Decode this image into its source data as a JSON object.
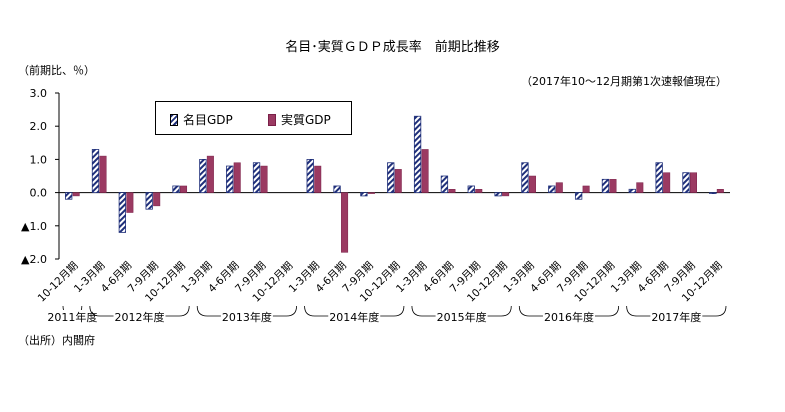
{
  "title": "名目･実質ＧＤＰ成長率　前期比推移",
  "unit_label": "（前期比、％）",
  "note": "（2017年10～12月期第1次速報値現在）",
  "source": "（出所）内閣府",
  "colors": {
    "nominal": "#1f2f7a",
    "real": "#9b3a62",
    "axis": "#000000"
  },
  "chart_data": {
    "type": "bar",
    "categories": [
      "10-12月期",
      "1-3月期",
      "4-6月期",
      "7-9月期",
      "10-12月期",
      "1-3月期",
      "4-6月期",
      "7-9月期",
      "10-12月期",
      "1-3月期",
      "4-6月期",
      "7-9月期",
      "10-12月期",
      "1-3月期",
      "4-6月期",
      "7-9月期",
      "10-12月期",
      "1-3月期",
      "4-6月期",
      "7-9月期",
      "10-12月期",
      "1-3月期",
      "4-6月期",
      "7-9月期",
      "10-12月期"
    ],
    "series": [
      {
        "name": "名目GDP",
        "values": [
          -0.2,
          1.3,
          -1.2,
          -0.5,
          0.2,
          1.0,
          0.8,
          0.9,
          null,
          1.0,
          0.2,
          -0.1,
          0.9,
          2.3,
          0.5,
          0.2,
          -0.1,
          0.9,
          0.2,
          -0.2,
          0.4,
          0.1,
          0.9,
          0.6,
          0.0
        ]
      },
      {
        "name": "実質GDP",
        "values": [
          -0.1,
          1.1,
          -0.6,
          -0.4,
          0.2,
          1.1,
          0.9,
          0.8,
          null,
          0.8,
          -1.8,
          0.0,
          0.7,
          1.3,
          0.1,
          0.1,
          -0.1,
          0.5,
          0.3,
          0.2,
          0.4,
          0.3,
          0.6,
          0.6,
          0.1
        ]
      }
    ],
    "ylim": [
      -2.0,
      3.0
    ],
    "yticks": [
      3.0,
      2.0,
      1.0,
      0.0,
      -1.0,
      -2.0
    ],
    "ytick_labels": [
      "3.0",
      "2.0",
      "1.0",
      "0.0",
      "▲1.0",
      "▲2.0"
    ],
    "years": [
      {
        "label": "2011年度",
        "start": 0,
        "end": 0
      },
      {
        "label": "2012年度",
        "start": 1,
        "end": 4
      },
      {
        "label": "2013年度",
        "start": 5,
        "end": 8
      },
      {
        "label": "2014年度",
        "start": 9,
        "end": 12
      },
      {
        "label": "2015年度",
        "start": 13,
        "end": 16
      },
      {
        "label": "2016年度",
        "start": 17,
        "end": 20
      },
      {
        "label": "2017年度",
        "start": 21,
        "end": 24
      }
    ],
    "legend": "top-left, inside"
  }
}
